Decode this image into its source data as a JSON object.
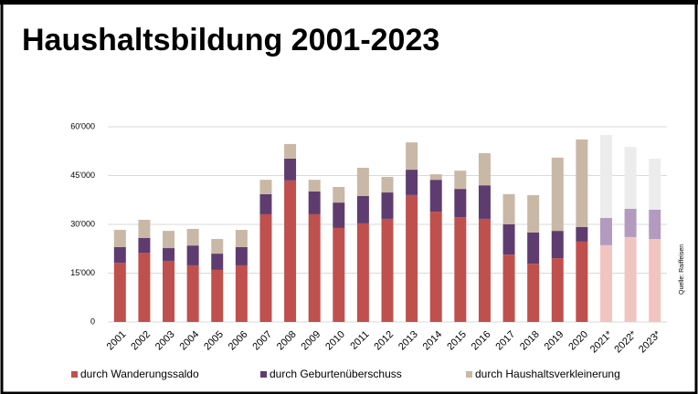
{
  "chart_data": {
    "type": "stacked_bar",
    "title": "Haushaltsbildung 2001-2023",
    "source": "Quelle: Raiffeisen",
    "categories": [
      "2001",
      "2002",
      "2003",
      "2004",
      "2005",
      "2006",
      "2007",
      "2008",
      "2009",
      "2010",
      "2011",
      "2012",
      "2013",
      "2014",
      "2015",
      "2016",
      "2017",
      "2018",
      "2019",
      "2020",
      "2021*",
      "2022*",
      "2023*"
    ],
    "series": [
      {
        "name": "durch Wanderungssaldo",
        "color": "#c0504d",
        "colors": [
          "#c0504d",
          "#c0504d",
          "#c0504d",
          "#c0504d",
          "#c0504d",
          "#c0504d",
          "#c0504d",
          "#c0504d",
          "#c0504d",
          "#c0504d",
          "#c0504d",
          "#c0504d",
          "#c0504d",
          "#c0504d",
          "#c0504d",
          "#c0504d",
          "#c0504d",
          "#c0504d",
          "#c0504d",
          "#c0504d",
          "#f2c4bf",
          "#f2c4bf",
          "#f2c4bf"
        ],
        "values": [
          18200,
          21300,
          18800,
          17400,
          16000,
          17400,
          33100,
          43500,
          33100,
          28900,
          30300,
          31700,
          39000,
          33900,
          32200,
          31700,
          20700,
          17900,
          19600,
          24700,
          23600,
          26100,
          25500
        ]
      },
      {
        "name": "durch Geburtenüberschuss",
        "color": "#5f3c6f",
        "colors": [
          "#5f3c6f",
          "#5f3c6f",
          "#5f3c6f",
          "#5f3c6f",
          "#5f3c6f",
          "#5f3c6f",
          "#5f3c6f",
          "#5f3c6f",
          "#5f3c6f",
          "#5f3c6f",
          "#5f3c6f",
          "#5f3c6f",
          "#5f3c6f",
          "#5f3c6f",
          "#5f3c6f",
          "#5f3c6f",
          "#5f3c6f",
          "#5f3c6f",
          "#5f3c6f",
          "#5f3c6f",
          "#b39bc0",
          "#b39bc0",
          "#b39bc0"
        ],
        "values": [
          4800,
          4500,
          3900,
          6100,
          5000,
          5600,
          6200,
          6700,
          7000,
          7800,
          8400,
          8100,
          7800,
          9800,
          8700,
          10300,
          9300,
          9600,
          8400,
          4500,
          8400,
          8700,
          9000
        ]
      },
      {
        "name": "durch Haushaltsverkleinerung",
        "color": "#c9b8a6",
        "colors": [
          "#c9b8a6",
          "#c9b8a6",
          "#c9b8a6",
          "#c9b8a6",
          "#c9b8a6",
          "#c9b8a6",
          "#c9b8a6",
          "#c9b8a6",
          "#c9b8a6",
          "#c9b8a6",
          "#c9b8a6",
          "#c9b8a6",
          "#c9b8a6",
          "#c9b8a6",
          "#c9b8a6",
          "#c9b8a6",
          "#c9b8a6",
          "#c9b8a6",
          "#c9b8a6",
          "#c9b8a6",
          "#ececec",
          "#ececec",
          "#ececec"
        ],
        "values": [
          5300,
          5600,
          5300,
          5100,
          4500,
          5300,
          4400,
          4500,
          3600,
          4800,
          8700,
          4800,
          8400,
          1700,
          5600,
          9900,
          9300,
          11500,
          22500,
          26900,
          25500,
          19000,
          15700
        ]
      }
    ],
    "ylim": [
      0,
      60000
    ],
    "yticks": [
      0,
      {
        "value": 15000,
        "label": "15'000"
      },
      {
        "value": 30000,
        "label": "30'000"
      },
      {
        "value": 45000,
        "label": "45'000"
      },
      {
        "value": 60000,
        "label": "60'000"
      }
    ],
    "grid": true,
    "legend": "bottom"
  }
}
